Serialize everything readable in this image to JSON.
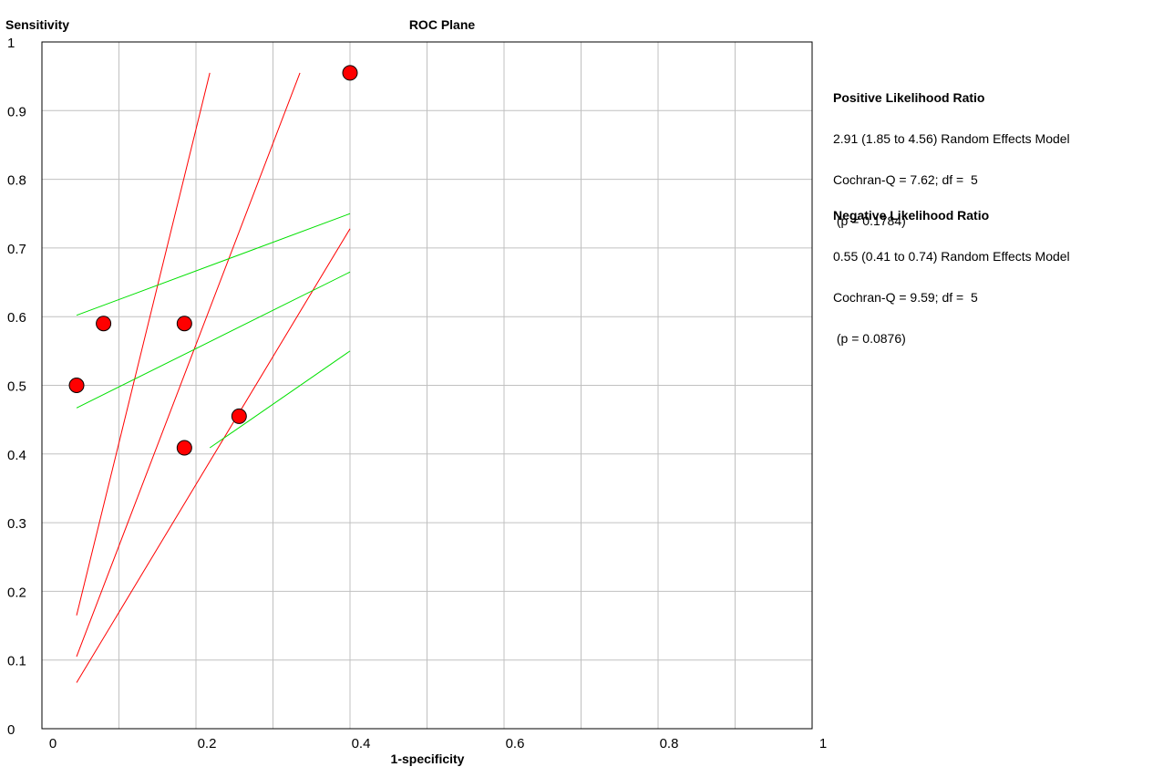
{
  "chart_data": {
    "type": "scatter",
    "title": "ROC Plane",
    "xlabel": "1-specificity",
    "ylabel": "Sensitivity",
    "xlim": [
      0,
      1
    ],
    "ylim": [
      0,
      1
    ],
    "grid": true,
    "x_ticks": [
      {
        "value": 0,
        "label": "0"
      },
      {
        "value": 0.2,
        "label": "0.2"
      },
      {
        "value": 0.4,
        "label": "0.4"
      },
      {
        "value": 0.6,
        "label": "0.6"
      },
      {
        "value": 0.8,
        "label": "0.8"
      },
      {
        "value": 1,
        "label": "1"
      }
    ],
    "y_ticks": [
      {
        "value": 0,
        "label": "0"
      },
      {
        "value": 0.1,
        "label": "0.1"
      },
      {
        "value": 0.2,
        "label": "0.2"
      },
      {
        "value": 0.3,
        "label": "0.3"
      },
      {
        "value": 0.4,
        "label": "0.4"
      },
      {
        "value": 0.5,
        "label": "0.5"
      },
      {
        "value": 0.6,
        "label": "0.6"
      },
      {
        "value": 0.7,
        "label": "0.7"
      },
      {
        "value": 0.8,
        "label": "0.8"
      },
      {
        "value": 0.9,
        "label": "0.9"
      },
      {
        "value": 1,
        "label": "1"
      }
    ],
    "points": [
      {
        "x": 0.045,
        "y": 0.5
      },
      {
        "x": 0.08,
        "y": 0.59
      },
      {
        "x": 0.185,
        "y": 0.59
      },
      {
        "x": 0.185,
        "y": 0.409
      },
      {
        "x": 0.256,
        "y": 0.455
      },
      {
        "x": 0.4,
        "y": 0.955
      }
    ],
    "positive_lr_lines": [
      {
        "x1": 0.045,
        "y1": 0.165,
        "x2": 0.218,
        "y2": 0.955
      },
      {
        "x1": 0.045,
        "y1": 0.105,
        "x2": 0.335,
        "y2": 0.955
      },
      {
        "x1": 0.045,
        "y1": 0.067,
        "x2": 0.4,
        "y2": 0.728
      }
    ],
    "negative_lr_lines": [
      {
        "x1": 0.045,
        "y1": 0.602,
        "x2": 0.4,
        "y2": 0.75
      },
      {
        "x1": 0.045,
        "y1": 0.467,
        "x2": 0.4,
        "y2": 0.665
      },
      {
        "x1": 0.218,
        "y1": 0.409,
        "x2": 0.4,
        "y2": 0.55
      }
    ],
    "colors": {
      "point_fill": "#ff0000",
      "point_stroke": "#000000",
      "positive_line": "#ff0000",
      "negative_line": "#00e000"
    }
  },
  "annotations": {
    "positive": {
      "heading": "Positive Likelihood Ratio",
      "line1": "2.91 (1.85 to 4.56) Random Effects Model",
      "line2": "Cochran-Q = 7.62; df =  5",
      "line3": " (p = 0.1784)"
    },
    "negative": {
      "heading": "Negative Likelihood Ratio",
      "line1": "0.55 (0.41 to 0.74) Random Effects Model",
      "line2": "Cochran-Q = 9.59; df =  5",
      "line3": " (p = 0.0876)"
    }
  }
}
